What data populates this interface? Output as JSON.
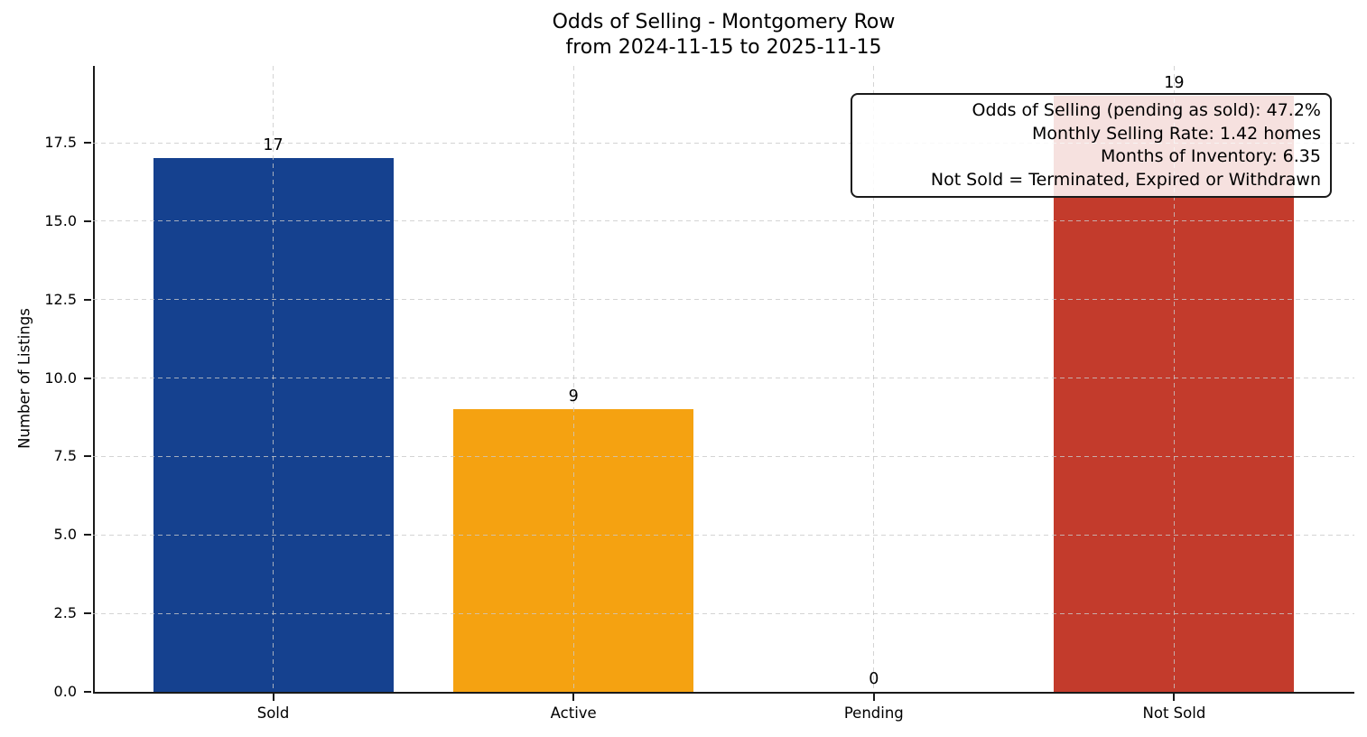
{
  "chart_data": {
    "type": "bar",
    "title": "Odds of Selling - Montgomery Row",
    "subtitle": "from 2024-11-15 to 2025-11-15",
    "ylabel": "Number of Listings",
    "xlabel": "",
    "categories": [
      "Sold",
      "Active",
      "Pending",
      "Not Sold"
    ],
    "values": [
      17,
      9,
      0,
      19
    ],
    "value_labels": [
      "17",
      "9",
      "0",
      "19"
    ],
    "bar_colors": [
      "#15418F",
      "#F5A211",
      null,
      "#C33B2C"
    ],
    "yticks": [
      0,
      2.5,
      5,
      7.5,
      10,
      12.5,
      15,
      17.5
    ],
    "ytick_labels": [
      "0.0",
      "2.5",
      "5.0",
      "7.5",
      "10.0",
      "12.5",
      "15.0",
      "17.5"
    ],
    "ylim": [
      0,
      19.95
    ],
    "xlim": [
      -0.6,
      3.6
    ],
    "bar_width": 0.8,
    "grid": "on, dashed, drawn above bars",
    "grid_color": "#c9c9c9",
    "axis_color": "#1a1a1a",
    "legend": "none",
    "annotation": {
      "position": "top-right",
      "background": "rgba(255,255,255,0.85)",
      "border_color": "#1a1a1a",
      "lines": [
        "Odds of Selling (pending as sold): 47.2%",
        "Monthly Selling Rate: 1.42 homes",
        "Months of Inventory: 6.35",
        "Not Sold = Terminated, Expired or Withdrawn"
      ]
    }
  }
}
